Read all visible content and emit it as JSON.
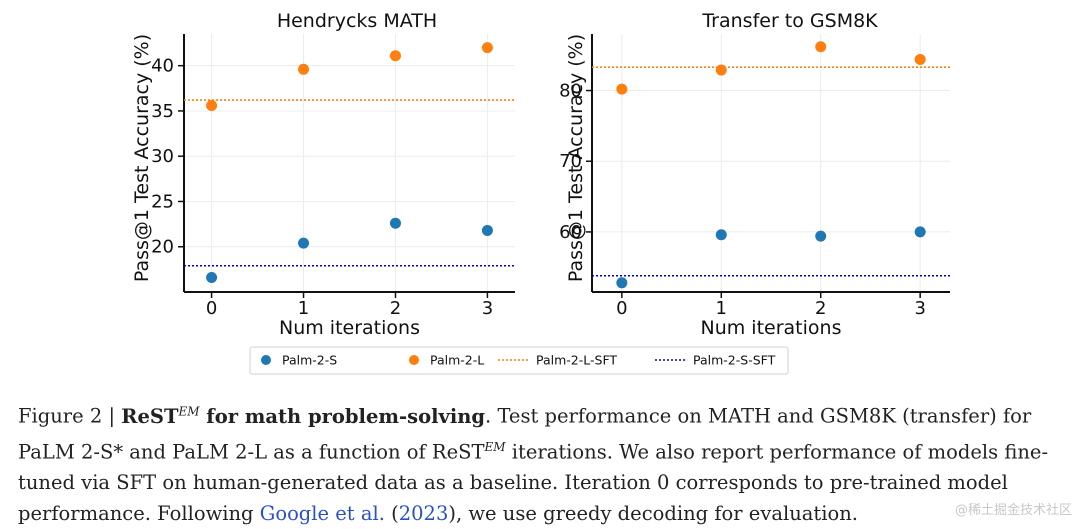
{
  "chart_data": [
    {
      "type": "scatter",
      "title": "Hendrycks MATH",
      "xlabel": "Num iterations",
      "ylabel": "Pass@1 Test Accuracy (%)",
      "x": [
        0,
        1,
        2,
        3
      ],
      "xlim": [
        -0.3,
        3.3
      ],
      "ylim": [
        15,
        43.5
      ],
      "yticks": [
        20,
        25,
        30,
        35,
        40
      ],
      "grid": true,
      "series": [
        {
          "name": "Palm-2-S",
          "kind": "points",
          "color": "#1f77b4",
          "values": [
            16.6,
            20.4,
            22.6,
            21.8
          ]
        },
        {
          "name": "Palm-2-L",
          "kind": "points",
          "color": "#ff7f0e",
          "values": [
            35.6,
            39.6,
            41.1,
            42.0
          ]
        },
        {
          "name": "Palm-2-L-SFT",
          "kind": "hline",
          "color": "#ff7f0e",
          "value": 36.2
        },
        {
          "name": "Palm-2-S-SFT",
          "kind": "hline",
          "color": "#0000cc",
          "value": 17.9
        }
      ]
    },
    {
      "type": "scatter",
      "title": "Transfer to GSM8K",
      "xlabel": "Num iterations",
      "ylabel": "Pass@1 Test Accuracy (%)",
      "x": [
        0,
        1,
        2,
        3
      ],
      "xlim": [
        -0.3,
        3.3
      ],
      "ylim": [
        51.5,
        88
      ],
      "yticks": [
        60,
        70,
        80
      ],
      "grid": true,
      "series": [
        {
          "name": "Palm-2-S",
          "kind": "points",
          "color": "#1f77b4",
          "values": [
            52.8,
            59.6,
            59.4,
            60.0
          ]
        },
        {
          "name": "Palm-2-L",
          "kind": "points",
          "color": "#ff7f0e",
          "values": [
            80.2,
            82.9,
            86.2,
            84.4
          ]
        },
        {
          "name": "Palm-2-L-SFT",
          "kind": "hline",
          "color": "#ff7f0e",
          "value": 83.3
        },
        {
          "name": "Palm-2-S-SFT",
          "kind": "hline",
          "color": "#0000cc",
          "value": 53.8
        }
      ]
    }
  ],
  "legend": {
    "placement": "bottom-center",
    "items": [
      {
        "label": "Palm-2-S",
        "kind": "point",
        "color": "#1f77b4"
      },
      {
        "label": "Palm-2-L",
        "kind": "point",
        "color": "#ff7f0e"
      },
      {
        "label": "Palm-2-L-SFT",
        "kind": "line",
        "color": "#ff7f0e"
      },
      {
        "label": "Palm-2-S-SFT",
        "kind": "line",
        "color": "#0000cc"
      }
    ]
  },
  "caption": {
    "prefix": "Figure 2 | ",
    "rest": "ReST",
    "em": "EM",
    "bold_rest": " for math problem-solving",
    "part1": ". Test performance on MATH and GSM8K (transfer) for PaLM 2-S* and PaLM 2-L as a function of ReST",
    "em2": "EM",
    "part2": " iterations. We also report performance of models fine-tuned via SFT on human-generated data as a baseline. Iteration 0 corresponds to pre-trained model performance. Following ",
    "link1": "Google et al.",
    "paren_open": " (",
    "link2": "2023",
    "paren_close": ")",
    "part3": ", we use greedy decoding for evaluation."
  },
  "watermark": "@稀土掘金技术社区"
}
